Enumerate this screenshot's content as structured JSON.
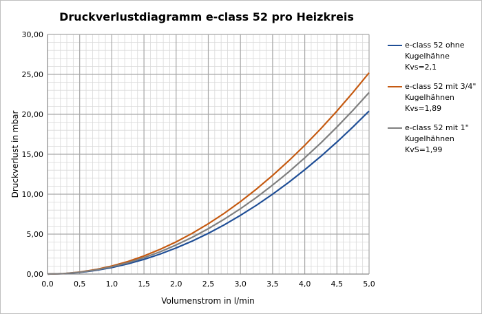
{
  "chart_data": {
    "type": "line",
    "title": "Druckverlustdiagramm e-class 52 pro Heizkreis",
    "xlabel": "Volumenstrom in l/min",
    "ylabel": "Druckverlust in mbar",
    "x": [
      0,
      0.25,
      0.5,
      0.75,
      1,
      1.25,
      1.5,
      1.75,
      2,
      2.25,
      2.5,
      2.75,
      3,
      3.25,
      3.5,
      3.75,
      4,
      4.25,
      4.5,
      4.75,
      5
    ],
    "series": [
      {
        "name": "e-class 52 ohne\nKugelhähne\nKvs=2,1",
        "color": "#1f4e96",
        "values": [
          0,
          0.05,
          0.2,
          0.46,
          0.82,
          1.28,
          1.84,
          2.5,
          3.27,
          4.13,
          5.1,
          6.17,
          7.35,
          8.62,
          10.0,
          11.48,
          13.06,
          14.74,
          16.53,
          18.42,
          20.41
        ]
      },
      {
        "name": "e-class 52 mit 3/4\"\nKugelhähnen\nKvs=1,89",
        "color": "#c55a11",
        "values": [
          0,
          0.06,
          0.25,
          0.57,
          1.01,
          1.57,
          2.27,
          3.09,
          4.03,
          5.1,
          6.3,
          7.62,
          9.07,
          10.65,
          12.35,
          14.17,
          16.12,
          18.2,
          20.41,
          22.74,
          25.2
        ]
      },
      {
        "name": "e-class 52 mit 1\"\nKugelhähnen\nKvS=1,99",
        "color": "#7f7f7f",
        "values": [
          0,
          0.06,
          0.23,
          0.51,
          0.91,
          1.42,
          2.05,
          2.78,
          3.64,
          4.6,
          5.68,
          6.88,
          8.18,
          9.6,
          11.14,
          12.78,
          14.55,
          16.42,
          18.41,
          20.51,
          22.73
        ]
      }
    ],
    "xlim": [
      0,
      5
    ],
    "ylim": [
      0,
      30
    ],
    "xticks": [
      {
        "value": 0,
        "label": "0,0"
      },
      {
        "value": 0.5,
        "label": "0,5"
      },
      {
        "value": 1,
        "label": "1,0"
      },
      {
        "value": 1.5,
        "label": "1,5"
      },
      {
        "value": 2,
        "label": "2,0"
      },
      {
        "value": 2.5,
        "label": "2,5"
      },
      {
        "value": 3,
        "label": "3,0"
      },
      {
        "value": 3.5,
        "label": "3,5"
      },
      {
        "value": 4,
        "label": "4,0"
      },
      {
        "value": 4.5,
        "label": "4,5"
      },
      {
        "value": 5,
        "label": "5,0"
      }
    ],
    "yticks": [
      {
        "value": 0,
        "label": "0,00"
      },
      {
        "value": 5,
        "label": "5,00"
      },
      {
        "value": 10,
        "label": "10,00"
      },
      {
        "value": 15,
        "label": "15,00"
      },
      {
        "value": 20,
        "label": "20,00"
      },
      {
        "value": 25,
        "label": "25,00"
      },
      {
        "value": 30,
        "label": "30,00"
      }
    ],
    "xminorticks": [
      0.1,
      0.2,
      0.3,
      0.4,
      0.6,
      0.7,
      0.8,
      0.9,
      1.1,
      1.2,
      1.3,
      1.4,
      1.6,
      1.7,
      1.8,
      1.9,
      2.1,
      2.2,
      2.3,
      2.4,
      2.6,
      2.7,
      2.8,
      2.9,
      3.1,
      3.2,
      3.3,
      3.4,
      3.6,
      3.7,
      3.8,
      3.9,
      4.1,
      4.2,
      4.3,
      4.4,
      4.6,
      4.7,
      4.8,
      4.9
    ],
    "yminorticks": [
      1,
      2,
      3,
      4,
      6,
      7,
      8,
      9,
      11,
      12,
      13,
      14,
      16,
      17,
      18,
      19,
      21,
      22,
      23,
      24,
      26,
      27,
      28,
      29
    ],
    "grid": true,
    "legend": "right"
  }
}
